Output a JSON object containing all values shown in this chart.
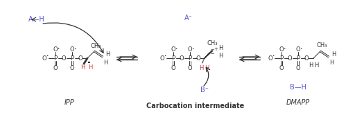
{
  "bg_color": "#ffffff",
  "dark_color": "#333333",
  "blue_color": "#5555cc",
  "red_color": "#cc3333",
  "figsize": [
    5.12,
    1.66
  ],
  "dpi": 100,
  "labels": {
    "ipp": "IPP",
    "carbocation": "Carbocation intermediate",
    "dmapp": "DMAPP",
    "a_minus": "A⁻",
    "b_minus": "B⁻",
    "a_h": "A—H",
    "b_h": "B—H"
  }
}
